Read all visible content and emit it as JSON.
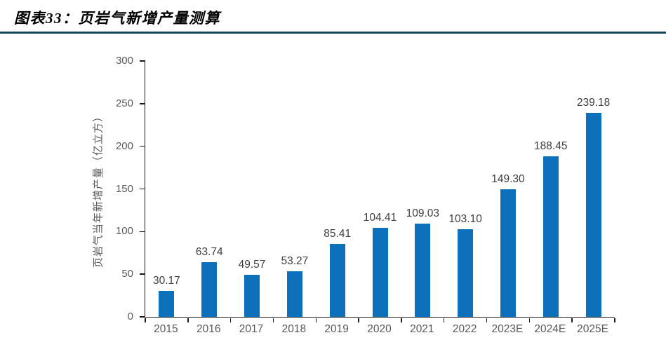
{
  "header": {
    "title": "图表33：页岩气新增产量测算"
  },
  "chart_data": {
    "type": "bar",
    "title": "页岩气新增产量测算",
    "categories": [
      "2015",
      "2016",
      "2017",
      "2018",
      "2019",
      "2020",
      "2021",
      "2022",
      "2023E",
      "2024E",
      "2025E"
    ],
    "values": [
      30.17,
      63.74,
      49.57,
      53.27,
      85.41,
      104.41,
      109.03,
      103.1,
      149.3,
      188.45,
      239.18
    ],
    "xlabel": "",
    "ylabel": "页岩气当年新增产量（亿立方）",
    "ylim": [
      0,
      300
    ],
    "ytick_step": 50,
    "grid": false,
    "legend": "none",
    "value_label_decimals": 2
  },
  "colors": {
    "bar": "#0d70ba",
    "rule": "#17495e",
    "axis": "#1a1a1a",
    "tick_label": "#595959",
    "data_label": "#404040"
  }
}
